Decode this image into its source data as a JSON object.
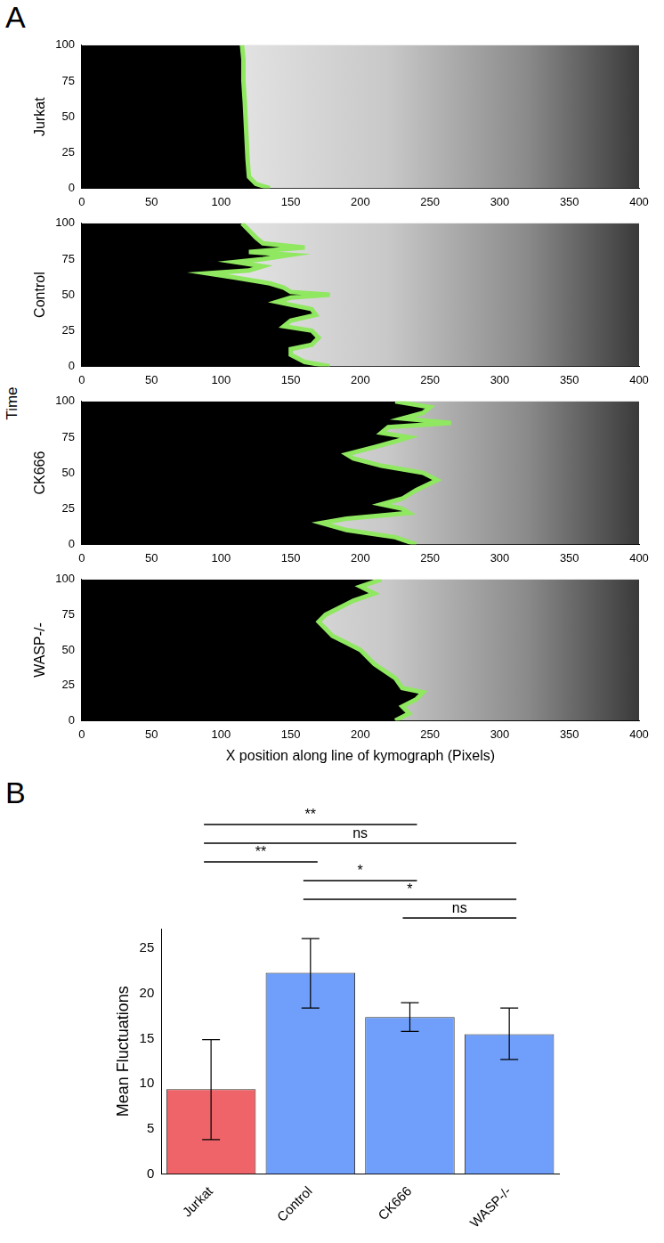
{
  "chart_data": [
    {
      "type": "line",
      "panel": "A",
      "ylabel": "Jurkat",
      "color": "#8fe860",
      "x": [
        135,
        125,
        120,
        119,
        118,
        117,
        116,
        116,
        115
      ],
      "values": [
        0,
        3,
        8,
        20,
        40,
        60,
        75,
        90,
        100
      ],
      "xlim": [
        0,
        400
      ],
      "xticks": [
        0,
        50,
        100,
        150,
        200,
        250,
        300,
        350,
        400
      ],
      "ylim": [
        0,
        100
      ],
      "yticks": [
        0,
        25,
        50,
        75,
        100
      ],
      "grid": false
    },
    {
      "type": "line",
      "ylabel": "Control",
      "color": "#8fe860",
      "x": [
        178,
        160,
        150,
        150,
        165,
        170,
        165,
        145,
        150,
        168,
        165,
        140,
        150,
        178,
        150,
        145,
        135,
        110,
        90,
        120,
        130,
        110,
        130,
        150,
        120,
        160,
        130,
        125,
        120,
        115
      ],
      "values": [
        0,
        3,
        8,
        12,
        15,
        20,
        25,
        28,
        32,
        36,
        40,
        45,
        48,
        50,
        52,
        55,
        58,
        62,
        65,
        67,
        70,
        73,
        75,
        78,
        80,
        83,
        86,
        90,
        95,
        100
      ],
      "xlim": [
        0,
        400
      ],
      "xticks": [
        0,
        50,
        100,
        150,
        200,
        250,
        300,
        350,
        400
      ],
      "ylim": [
        0,
        100
      ],
      "yticks": [
        0,
        25,
        50,
        75,
        100
      ],
      "grid": false
    },
    {
      "type": "line",
      "ylabel": "CK666",
      "color": "#8fe860",
      "x": [
        240,
        225,
        190,
        172,
        190,
        235,
        230,
        215,
        230,
        240,
        255,
        245,
        215,
        195,
        190,
        210,
        225,
        235,
        215,
        220,
        265,
        230,
        245,
        250,
        225
      ],
      "values": [
        0,
        5,
        10,
        15,
        18,
        22,
        25,
        28,
        32,
        38,
        45,
        50,
        55,
        60,
        63,
        68,
        72,
        75,
        78,
        82,
        85,
        88,
        92,
        96,
        100
      ],
      "xlim": [
        0,
        400
      ],
      "xticks": [
        0,
        50,
        100,
        150,
        200,
        250,
        300,
        350,
        400
      ],
      "ylim": [
        0,
        100
      ],
      "yticks": [
        0,
        25,
        50,
        75,
        100
      ],
      "grid": false
    },
    {
      "type": "line",
      "ylabel": "WASP-/-",
      "xlabel": "X position along line of kymograph (Pixels)",
      "color": "#8fe860",
      "x": [
        225,
        235,
        230,
        240,
        245,
        230,
        225,
        210,
        200,
        190,
        180,
        175,
        170,
        175,
        185,
        195,
        210,
        200,
        215
      ],
      "values": [
        0,
        5,
        10,
        15,
        20,
        23,
        30,
        40,
        50,
        55,
        60,
        65,
        70,
        75,
        80,
        85,
        90,
        95,
        100
      ],
      "xlim": [
        0,
        400
      ],
      "xticks": [
        0,
        50,
        100,
        150,
        200,
        250,
        300,
        350,
        400
      ],
      "ylim": [
        0,
        100
      ],
      "yticks": [
        0,
        25,
        50,
        75,
        100
      ],
      "grid": false
    },
    {
      "type": "bar",
      "panel": "B",
      "ylabel": "Mean Fluctuations",
      "categories": [
        "Jurkat",
        "Control",
        "CK666",
        "WASP-/-"
      ],
      "values": [
        9.4,
        22.3,
        17.4,
        15.5
      ],
      "colors": [
        "#ef6469",
        "#6f9ffb",
        "#6f9ffb",
        "#6f9ffb"
      ],
      "error_low": [
        3.8,
        18.4,
        15.8,
        12.7
      ],
      "error_high": [
        14.9,
        26.1,
        19.0,
        18.4
      ],
      "ylim": [
        0,
        27.2
      ],
      "yticks": [
        0,
        5,
        10,
        15,
        20,
        25
      ],
      "grid": false,
      "annotations": [
        {
          "from": "Jurkat",
          "to": "CK666",
          "text": "**"
        },
        {
          "from": "Jurkat",
          "to": "WASP-/-",
          "text": "ns"
        },
        {
          "from": "Jurkat",
          "to": "Control",
          "text": "**"
        },
        {
          "from": "Control",
          "to": "CK666",
          "text": "*"
        },
        {
          "from": "Control",
          "to": "WASP-/-",
          "text": "*"
        },
        {
          "from": "CK666",
          "to": "WASP-/-",
          "text": "ns"
        }
      ]
    }
  ],
  "figure": {
    "shared_ylabel": "Time"
  }
}
